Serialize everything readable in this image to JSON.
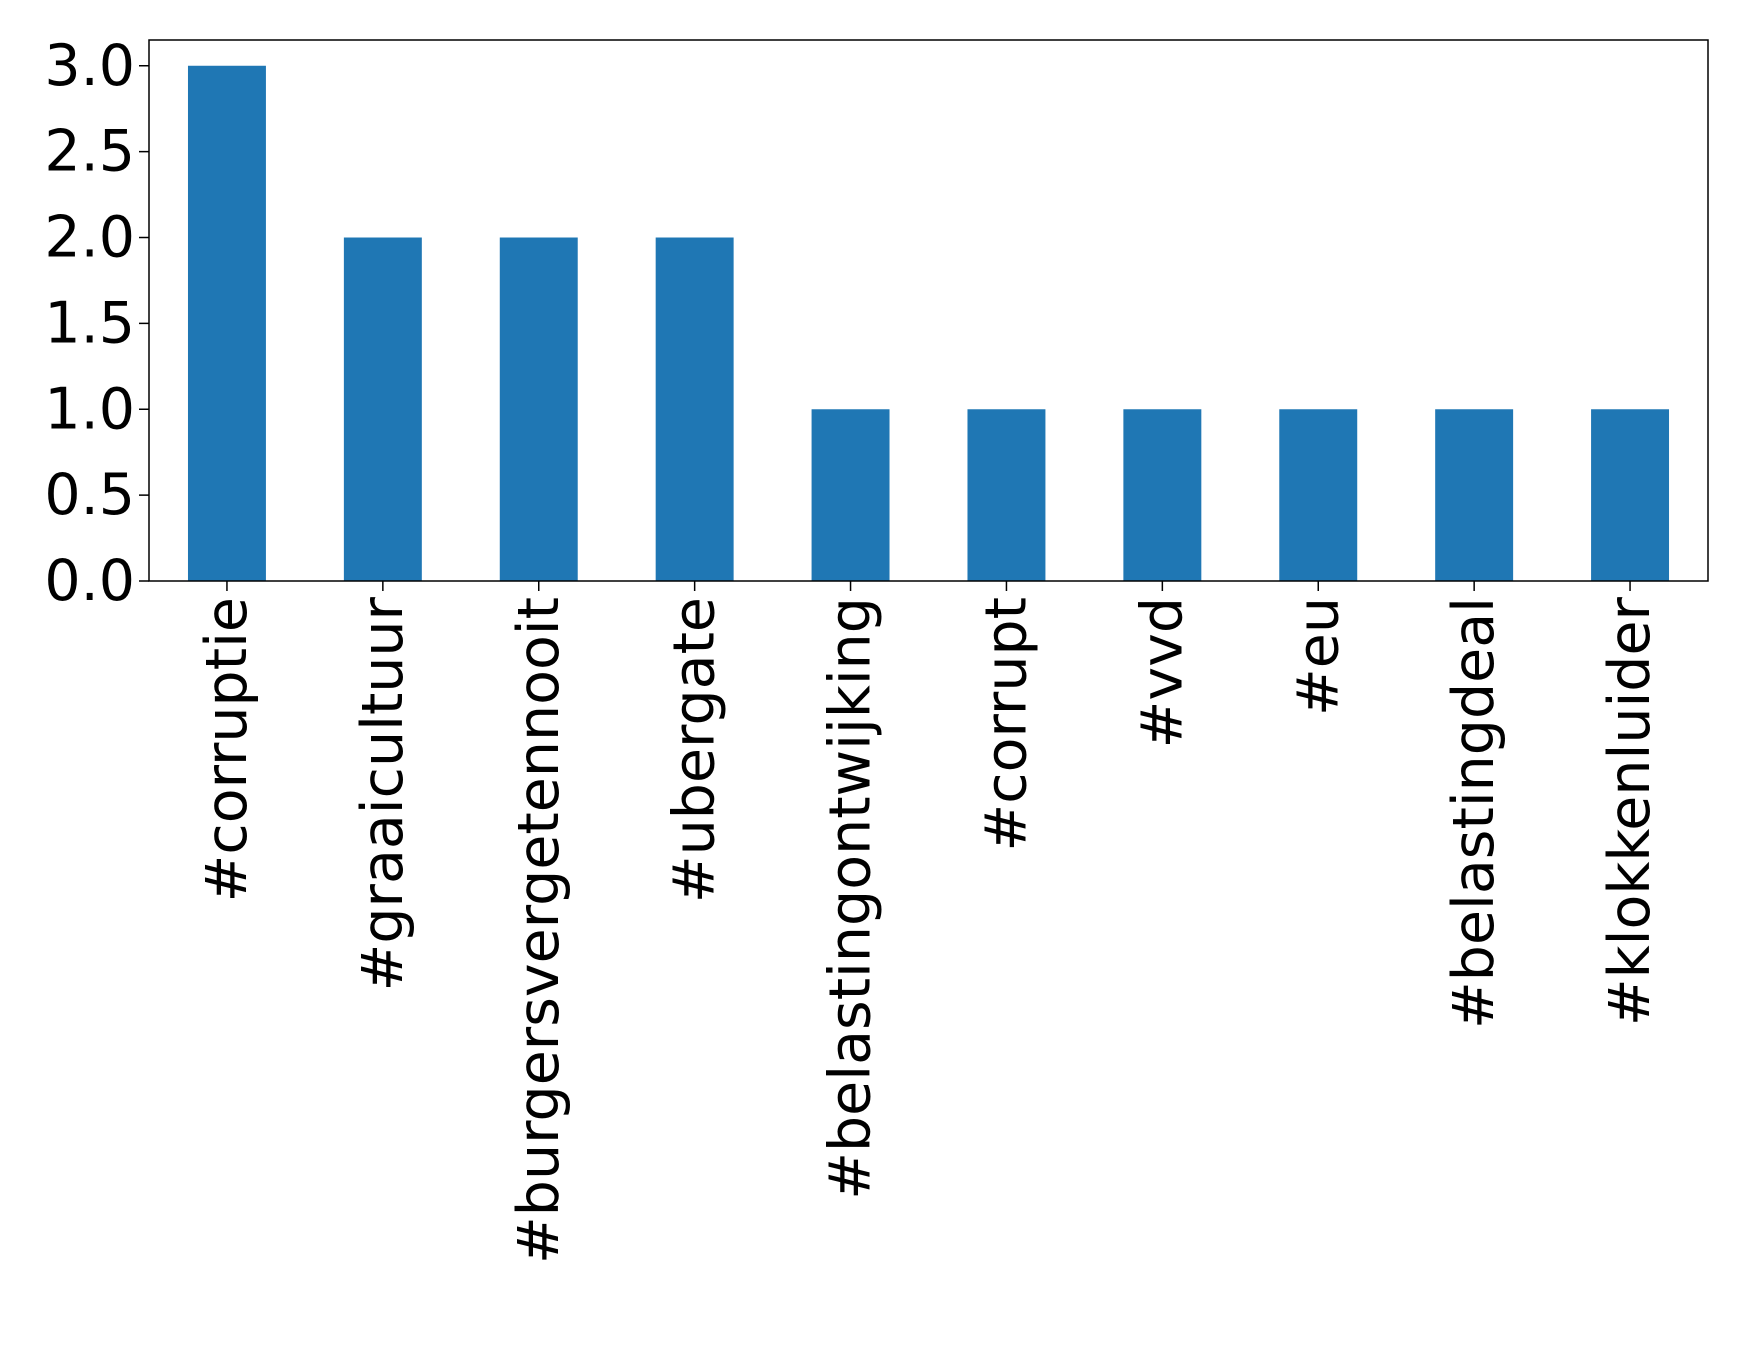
{
  "chart_data": {
    "type": "bar",
    "categories": [
      "#corruptie",
      "#graaicultuur",
      "#burgersvergetennooit",
      "#ubergate",
      "#belastingontwijking",
      "#corrupt",
      "#vvd",
      "#eu",
      "#belastingdeal",
      "#klokkenluider"
    ],
    "values": [
      3,
      2,
      2,
      2,
      1,
      1,
      1,
      1,
      1,
      1
    ],
    "color": "#1f77b4",
    "ylim": [
      0,
      3.15
    ],
    "yticks": [
      {
        "value": 0,
        "label": "0.0"
      },
      {
        "value": 0.5,
        "label": "0.5"
      },
      {
        "value": 1,
        "label": "1.0"
      },
      {
        "value": 1.5,
        "label": "1.5"
      },
      {
        "value": 2,
        "label": "2.0"
      },
      {
        "value": 2.5,
        "label": "2.5"
      },
      {
        "value": 3,
        "label": "3.0"
      }
    ],
    "grid": false
  }
}
